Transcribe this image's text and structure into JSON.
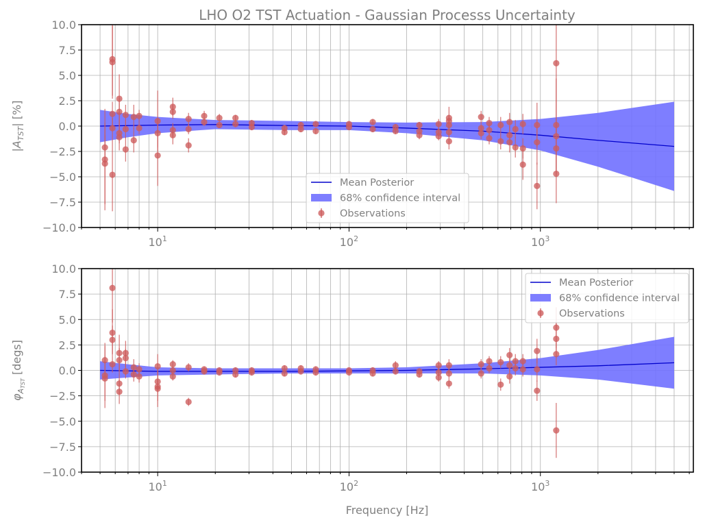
{
  "title": "LHO O2 TST Actuation - Gaussian Processs Uncertainty",
  "xlabel": "Frequency [Hz]",
  "ylabels": [
    "|A_TST| [%]",
    "φ_A_TST [degs]"
  ],
  "legend_entries": [
    "Mean Posterior",
    "68% confidence interval",
    "Observations"
  ],
  "colors": {
    "mean": "#0000cc",
    "band": "#7070ff",
    "points": "#cd5c5c"
  },
  "chart_data": [
    {
      "type": "scatter",
      "title": "LHO O2 TST Actuation - Gaussian Processs Uncertainty",
      "xlabel": "",
      "ylabel": "|A_TST| [%]",
      "xscale": "log",
      "xlim": [
        4,
        6300
      ],
      "ylim": [
        -10,
        10
      ],
      "xtick_labels": [
        "10^1",
        "10^2",
        "10^3"
      ],
      "ytick_labels": [
        "−10.0",
        "−7.5",
        "−5.0",
        "−2.5",
        "0.0",
        "2.5",
        "5.0",
        "7.5",
        "10.0"
      ],
      "grid": true,
      "legend_position": "lower-center",
      "series": [
        {
          "name": "Mean Posterior",
          "x": [
            5,
            10,
            20,
            50,
            100,
            200,
            500,
            1000,
            2000,
            5000
          ],
          "y": [
            0.0,
            0.1,
            0.15,
            0.05,
            0.0,
            -0.2,
            -0.5,
            -0.9,
            -1.4,
            -2.0
          ]
        },
        {
          "name": "68% confidence interval",
          "x": [
            5,
            7,
            10,
            20,
            50,
            100,
            200,
            500,
            1000,
            2000,
            5000
          ],
          "upper": [
            1.6,
            1.2,
            0.9,
            0.6,
            0.5,
            0.4,
            0.35,
            0.4,
            0.7,
            1.3,
            2.4
          ],
          "lower": [
            -1.6,
            -1.1,
            -0.7,
            -0.3,
            -0.4,
            -0.4,
            -0.7,
            -1.4,
            -2.4,
            -4.0,
            -6.4
          ]
        },
        {
          "name": "Observations",
          "x": [
            5.3,
            5.3,
            5.3,
            5.8,
            5.8,
            5.8,
            5.8,
            5.8,
            6.3,
            6.3,
            6.3,
            6.3,
            6.8,
            6.8,
            6.8,
            7.5,
            7.5,
            8.0,
            8.0,
            10,
            10,
            10,
            12,
            12,
            12,
            12,
            14.5,
            14.5,
            14.5,
            17.5,
            17.5,
            21,
            21,
            25.5,
            25.5,
            31,
            31,
            46,
            46,
            56,
            56,
            67,
            67,
            100,
            100,
            133,
            133,
            175,
            175,
            233,
            233,
            233,
            294,
            294,
            294,
            333,
            333,
            333,
            333,
            333,
            490,
            490,
            490,
            540,
            540,
            540,
            620,
            620,
            690,
            690,
            690,
            740,
            740,
            810,
            810,
            810,
            960,
            960,
            960,
            1210,
            1210,
            1210,
            1210,
            1210
          ],
          "y": [
            -2.1,
            -3.3,
            -3.7,
            6.6,
            6.3,
            1.2,
            -0.2,
            -4.8,
            2.7,
            1.4,
            -0.7,
            -1.1,
            1.1,
            -0.3,
            -2.3,
            0.9,
            -1.4,
            1.0,
            -0.2,
            0.5,
            -0.7,
            -2.9,
            1.9,
            1.4,
            -0.4,
            -0.9,
            0.7,
            -0.3,
            -1.9,
            1.0,
            0.4,
            0.8,
            0.1,
            0.8,
            0.2,
            0.3,
            -0.1,
            -0.2,
            -0.6,
            0.1,
            -0.3,
            0.2,
            -0.5,
            0.2,
            -0.1,
            0.4,
            -0.3,
            -0.1,
            -0.5,
            0.1,
            -0.5,
            -0.9,
            0.2,
            -0.6,
            -1.0,
            0.8,
            0.5,
            0.1,
            -0.6,
            -1.5,
            0.9,
            -0.2,
            -0.7,
            0.3,
            -0.4,
            -1.2,
            0.1,
            -1.5,
            0.4,
            -0.9,
            -1.6,
            -0.3,
            -2.1,
            0.2,
            -2.2,
            -3.8,
            0.1,
            -1.6,
            -5.9,
            6.2,
            0.1,
            -1.0,
            -2.2,
            -4.7
          ],
          "err": [
            1.2,
            5.0,
            4.0,
            3.6,
            3.6,
            1.2,
            1.0,
            3.6,
            2.4,
            1.4,
            1.0,
            1.3,
            1.0,
            0.9,
            1.2,
            1.2,
            1.2,
            0.6,
            0.6,
            3.0,
            1.4,
            3.0,
            0.9,
            0.7,
            0.7,
            0.9,
            0.6,
            0.5,
            0.7,
            0.5,
            0.4,
            0.4,
            0.3,
            0.3,
            0.3,
            0.3,
            0.3,
            0.3,
            0.3,
            0.3,
            0.3,
            0.3,
            0.3,
            0.3,
            0.3,
            0.3,
            0.3,
            0.3,
            0.3,
            0.3,
            0.3,
            0.4,
            0.5,
            0.4,
            0.4,
            1.1,
            0.6,
            0.5,
            0.5,
            0.8,
            0.6,
            0.6,
            0.6,
            0.6,
            0.6,
            0.6,
            0.8,
            0.8,
            0.9,
            0.9,
            1.0,
            0.9,
            1.0,
            1.0,
            1.0,
            1.5,
            2.2,
            2.2,
            2.3,
            3.8,
            4.6,
            3.4,
            2.6,
            2.9
          ]
        }
      ]
    },
    {
      "type": "scatter",
      "title": "",
      "xlabel": "Frequency [Hz]",
      "ylabel": "φ_A_TST [degs]",
      "xscale": "log",
      "xlim": [
        4,
        6300
      ],
      "ylim": [
        -10,
        10
      ],
      "xtick_labels": [
        "10^1",
        "10^2",
        "10^3"
      ],
      "ytick_labels": [
        "−10.0",
        "−7.5",
        "−5.0",
        "−2.5",
        "0.0",
        "2.5",
        "5.0",
        "7.5",
        "10.0"
      ],
      "grid": true,
      "legend_position": "upper-right",
      "series": [
        {
          "name": "Mean Posterior",
          "x": [
            5,
            10,
            20,
            50,
            100,
            200,
            500,
            1000,
            2000,
            5000
          ],
          "y": [
            0.0,
            -0.1,
            -0.1,
            -0.1,
            -0.05,
            0.0,
            0.15,
            0.3,
            0.45,
            0.75
          ]
        },
        {
          "name": "68% confidence interval",
          "x": [
            5,
            7,
            10,
            20,
            50,
            100,
            200,
            500,
            1000,
            2000,
            5000
          ],
          "upper": [
            0.9,
            0.6,
            0.3,
            0.2,
            0.2,
            0.2,
            0.3,
            0.7,
            1.2,
            2.0,
            3.3
          ],
          "lower": [
            -0.9,
            -0.7,
            -0.5,
            -0.4,
            -0.3,
            -0.3,
            -0.3,
            -0.3,
            -0.5,
            -0.9,
            -1.8
          ]
        },
        {
          "name": "Observations",
          "x": [
            5.3,
            5.3,
            5.3,
            5.8,
            5.8,
            5.8,
            5.8,
            6.3,
            6.3,
            6.3,
            6.3,
            6.8,
            6.8,
            6.8,
            7.5,
            7.5,
            8.0,
            8.0,
            10,
            10,
            10,
            10,
            12,
            12,
            12,
            14.5,
            14.5,
            17.5,
            17.5,
            21,
            21,
            25.5,
            25.5,
            31,
            31,
            46,
            46,
            56,
            56,
            67,
            67,
            100,
            100,
            133,
            133,
            175,
            175,
            233,
            233,
            294,
            294,
            294,
            333,
            333,
            333,
            490,
            490,
            540,
            540,
            620,
            620,
            690,
            690,
            690,
            740,
            740,
            810,
            810,
            960,
            960,
            960,
            1210,
            1210,
            1210,
            1210
          ],
          "y": [
            1.0,
            -0.5,
            -0.8,
            8.1,
            3.7,
            3.0,
            0.6,
            1.7,
            1.0,
            -1.3,
            -2.1,
            1.7,
            1.2,
            -0.1,
            0.3,
            -0.4,
            0.1,
            -0.6,
            0.4,
            -1.1,
            -1.6,
            -1.8,
            0.6,
            0.0,
            -0.6,
            0.3,
            -3.1,
            0.1,
            -0.1,
            0.0,
            -0.2,
            0.0,
            -0.4,
            0.0,
            -0.2,
            0.2,
            -0.3,
            0.2,
            -0.1,
            0.1,
            -0.2,
            0.0,
            -0.2,
            0.0,
            -0.3,
            0.5,
            -0.1,
            -0.1,
            -0.4,
            0.5,
            -0.2,
            -0.7,
            0.5,
            -0.3,
            -1.3,
            0.6,
            -0.3,
            0.9,
            0.2,
            0.8,
            -1.4,
            1.5,
            0.5,
            -0.6,
            0.9,
            0.2,
            0.9,
            0.1,
            1.9,
            0.1,
            -2.0,
            4.2,
            3.1,
            1.6,
            -5.9
          ],
          "err": [
            1.4,
            3.2,
            2.2,
            3.4,
            2.3,
            1.4,
            0.8,
            1.8,
            1.2,
            1.1,
            1.2,
            1.2,
            0.9,
            0.7,
            0.8,
            0.7,
            0.6,
            0.6,
            1.2,
            1.1,
            1.4,
            1.8,
            0.4,
            0.3,
            0.4,
            0.4,
            0.4,
            0.3,
            0.3,
            0.3,
            0.3,
            0.3,
            0.3,
            0.3,
            0.3,
            0.3,
            0.3,
            0.3,
            0.3,
            0.3,
            0.3,
            0.3,
            0.3,
            0.3,
            0.3,
            0.4,
            0.3,
            0.3,
            0.3,
            0.4,
            0.4,
            0.4,
            0.6,
            0.5,
            0.5,
            0.5,
            0.5,
            0.5,
            0.5,
            0.6,
            0.6,
            0.7,
            0.7,
            0.7,
            0.7,
            0.7,
            0.7,
            0.7,
            1.2,
            1.2,
            1.0,
            2.0,
            1.6,
            1.1,
            2.7
          ]
        }
      ]
    }
  ]
}
